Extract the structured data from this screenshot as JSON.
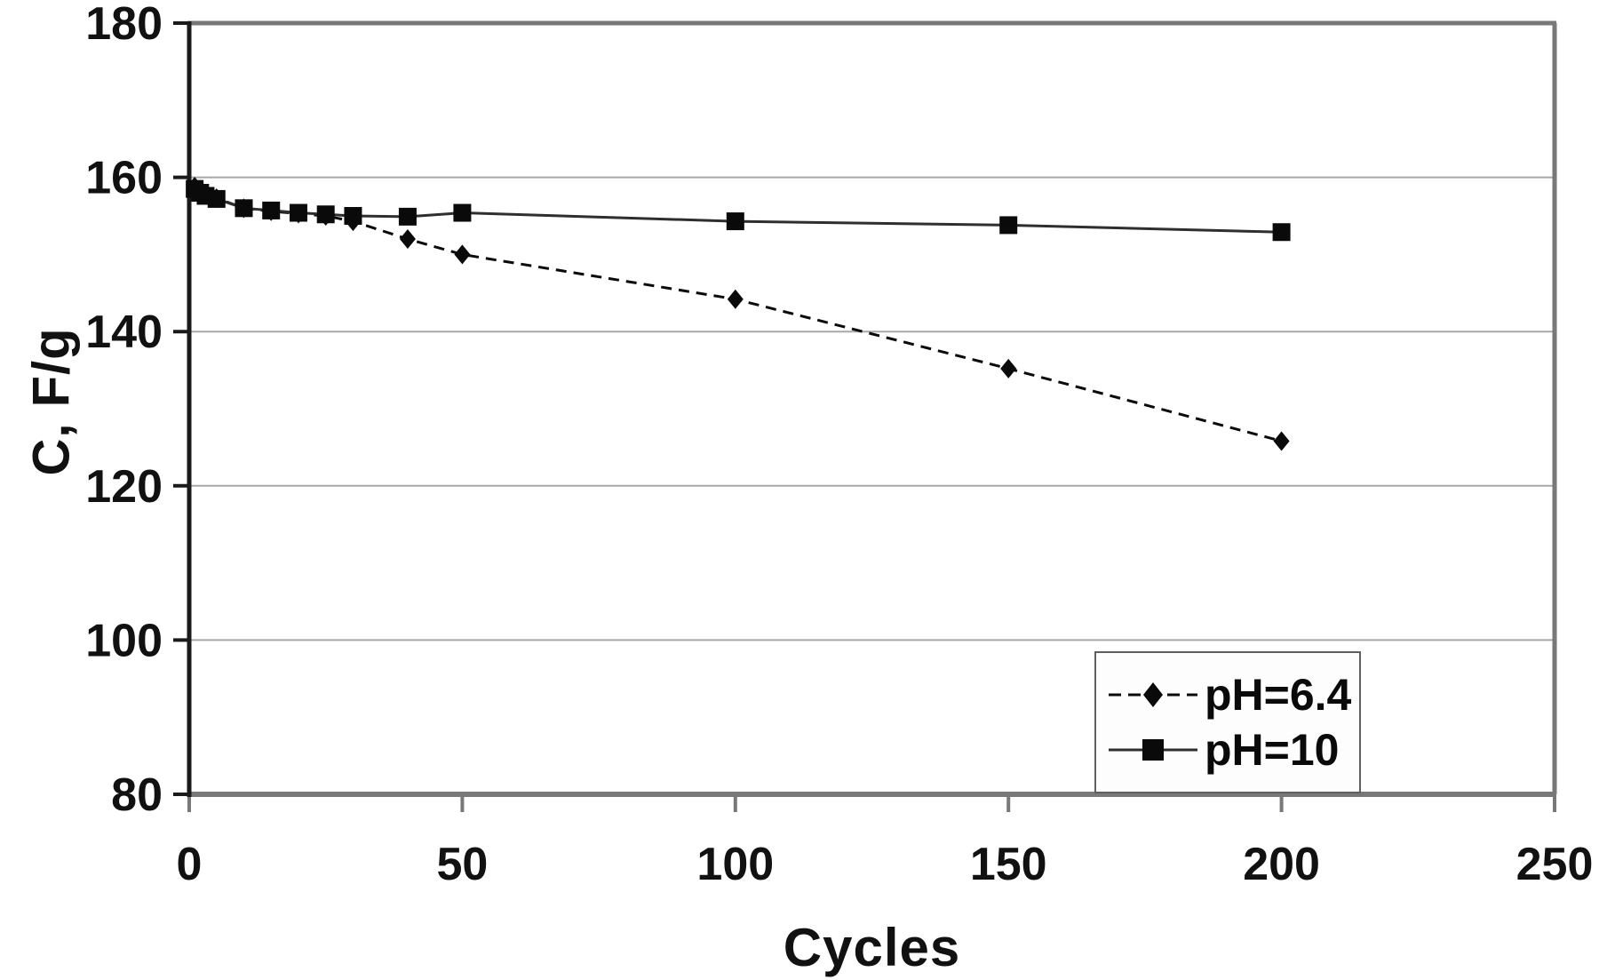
{
  "chart_data": {
    "type": "line",
    "title": "",
    "xlabel": "Cycles",
    "ylabel": "C, F/g",
    "xlim": [
      0,
      250
    ],
    "ylim": [
      80,
      180
    ],
    "x_ticks": [
      0,
      50,
      100,
      150,
      200,
      250
    ],
    "y_ticks": [
      80,
      100,
      120,
      140,
      160,
      180
    ],
    "grid": "horizontal gridlines at each y tick",
    "legend_position": "inside bottom-right",
    "series": [
      {
        "name": "pH=6.4",
        "marker": "diamond",
        "line_style": "dashed",
        "color": "#0a0a0a",
        "points": [
          [
            1,
            158.8
          ],
          [
            2,
            158.3
          ],
          [
            3,
            157.9
          ],
          [
            5,
            157.3
          ],
          [
            10,
            156.0
          ],
          [
            15,
            155.6
          ],
          [
            20,
            155.3
          ],
          [
            25,
            155.0
          ],
          [
            30,
            154.3
          ],
          [
            40,
            152.0
          ],
          [
            50,
            150.0
          ],
          [
            100,
            144.2
          ],
          [
            150,
            135.2
          ],
          [
            200,
            125.8
          ]
        ]
      },
      {
        "name": "pH=10",
        "marker": "square",
        "line_style": "solid",
        "color": "#2e2e2e",
        "points": [
          [
            1,
            158.5
          ],
          [
            2,
            158.0
          ],
          [
            3,
            157.6
          ],
          [
            5,
            157.2
          ],
          [
            10,
            156.0
          ],
          [
            15,
            155.7
          ],
          [
            20,
            155.4
          ],
          [
            25,
            155.2
          ],
          [
            30,
            155.0
          ],
          [
            40,
            154.9
          ],
          [
            50,
            155.4
          ],
          [
            100,
            154.3
          ],
          [
            150,
            153.8
          ],
          [
            200,
            152.9
          ]
        ]
      }
    ]
  },
  "colors": {
    "background": "#ffffff",
    "plot_border": "#787878",
    "y_axis": "#1a1a1a",
    "gridline": "#a8a8a8",
    "tick_text": "#111111",
    "series": "#0a0a0a",
    "legend_border": "#5f5f5f"
  }
}
